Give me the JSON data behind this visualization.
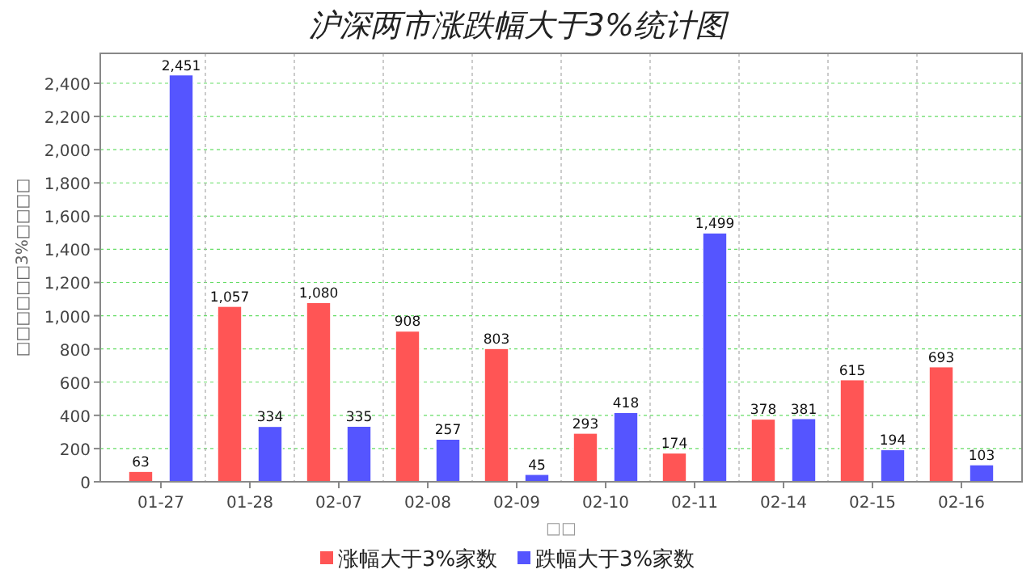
{
  "chart_data": {
    "type": "bar",
    "title": "沪深两市涨跌幅大于3%统计图",
    "xlabel": "□□",
    "ylabel": "□□□□□□3%□□□□",
    "categories": [
      "01-27",
      "01-28",
      "02-07",
      "02-08",
      "02-09",
      "02-10",
      "02-11",
      "02-14",
      "02-15",
      "02-16"
    ],
    "series": [
      {
        "name": "涨幅大于3%家数",
        "color": "#ff5555",
        "values": [
          63,
          1057,
          1080,
          908,
          803,
          293,
          174,
          378,
          615,
          693
        ],
        "value_labels": [
          "63",
          "1,057",
          "1,080",
          "908",
          "803",
          "293",
          "174",
          "378",
          "615",
          "693"
        ]
      },
      {
        "name": "跌幅大于3%家数",
        "color": "#5555ff",
        "values": [
          2451,
          334,
          335,
          257,
          45,
          418,
          1499,
          381,
          194,
          103
        ],
        "value_labels": [
          "2,451",
          "334",
          "335",
          "257",
          "45",
          "418",
          "1,499",
          "381",
          "194",
          "103"
        ]
      }
    ],
    "ylim": [
      0,
      2580
    ],
    "yticks": [
      0,
      {
        "value": 200,
        "label": "200"
      },
      {
        "value": 400,
        "label": "400"
      },
      {
        "value": 600,
        "label": "600"
      },
      {
        "value": 800,
        "label": "800"
      },
      {
        "value": 1000,
        "label": "1,000"
      },
      {
        "value": 1200,
        "label": "1,200"
      },
      {
        "value": 1400,
        "label": "1,400"
      },
      {
        "value": 1600,
        "label": "1,600"
      },
      {
        "value": 1800,
        "label": "1,800"
      },
      {
        "value": 2000,
        "label": "2,000"
      },
      {
        "value": 2200,
        "label": "2,200"
      },
      {
        "value": 2400,
        "label": "2,400"
      }
    ],
    "grid": true,
    "legend": "bottom"
  }
}
